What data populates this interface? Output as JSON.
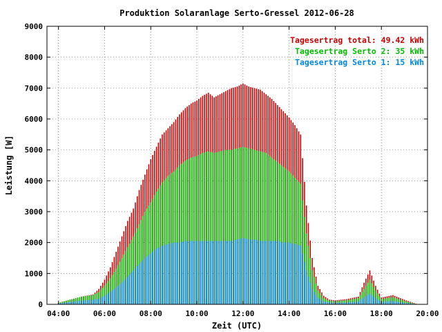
{
  "chart_data": {
    "type": "bar",
    "title": "Produktion Solaranlage Serto-Gressel 2012-06-28",
    "xlabel": "Zeit (UTC)",
    "ylabel": "Leistung [W]",
    "xlim": [
      3.5,
      20.0
    ],
    "ylim": [
      0,
      9000
    ],
    "x_ticks": [
      "04:00",
      "06:00",
      "08:00",
      "10:00",
      "12:00",
      "14:00",
      "16:00",
      "18:00",
      "20:00"
    ],
    "y_ticks": [
      "0",
      "1000",
      "2000",
      "3000",
      "4000",
      "5000",
      "6000",
      "7000",
      "8000",
      "9000"
    ],
    "grid": true,
    "legend_position": "top-right",
    "legend": [
      {
        "label": "Tagesertrag total: 49.42 kWh",
        "color": "#cc0000"
      },
      {
        "label": "Tagesertrag Serto 2: 35 kWh",
        "color": "#00bb00"
      },
      {
        "label": "Tagesertrag Serto 1: 15 kWh",
        "color": "#0088dd"
      }
    ],
    "series": [
      {
        "color": "#cc0000",
        "points": [
          [
            4.0,
            50
          ],
          [
            4.5,
            150
          ],
          [
            5.0,
            250
          ],
          [
            5.5,
            320
          ],
          [
            5.75,
            500
          ],
          [
            6.0,
            800
          ],
          [
            6.25,
            1200
          ],
          [
            6.5,
            1700
          ],
          [
            6.75,
            2200
          ],
          [
            7.0,
            2700
          ],
          [
            7.25,
            3100
          ],
          [
            7.5,
            3700
          ],
          [
            7.75,
            4200
          ],
          [
            8.0,
            4700
          ],
          [
            8.25,
            5100
          ],
          [
            8.5,
            5500
          ],
          [
            8.75,
            5700
          ],
          [
            9.0,
            5900
          ],
          [
            9.25,
            6150
          ],
          [
            9.5,
            6350
          ],
          [
            9.75,
            6500
          ],
          [
            10.0,
            6600
          ],
          [
            10.25,
            6750
          ],
          [
            10.5,
            6850
          ],
          [
            10.75,
            6700
          ],
          [
            11.0,
            6800
          ],
          [
            11.25,
            6900
          ],
          [
            11.5,
            7000
          ],
          [
            11.75,
            7050
          ],
          [
            12.0,
            7150
          ],
          [
            12.25,
            7050
          ],
          [
            12.5,
            7000
          ],
          [
            12.75,
            6950
          ],
          [
            13.0,
            6800
          ],
          [
            13.25,
            6650
          ],
          [
            13.5,
            6450
          ],
          [
            13.75,
            6250
          ],
          [
            14.0,
            6050
          ],
          [
            14.25,
            5800
          ],
          [
            14.5,
            5500
          ],
          [
            14.75,
            3200
          ],
          [
            15.0,
            1500
          ],
          [
            15.25,
            600
          ],
          [
            15.5,
            280
          ],
          [
            15.75,
            150
          ],
          [
            16.0,
            130
          ],
          [
            16.5,
            170
          ],
          [
            17.0,
            250
          ],
          [
            17.25,
            700
          ],
          [
            17.5,
            1100
          ],
          [
            17.75,
            600
          ],
          [
            18.0,
            220
          ],
          [
            18.5,
            300
          ],
          [
            19.0,
            150
          ],
          [
            19.5,
            20
          ]
        ]
      },
      {
        "color": "#00bb00",
        "points": [
          [
            4.0,
            50
          ],
          [
            4.5,
            150
          ],
          [
            5.0,
            250
          ],
          [
            5.5,
            300
          ],
          [
            5.75,
            400
          ],
          [
            6.0,
            600
          ],
          [
            6.25,
            850
          ],
          [
            6.5,
            1150
          ],
          [
            6.75,
            1500
          ],
          [
            7.0,
            1850
          ],
          [
            7.25,
            2200
          ],
          [
            7.5,
            2600
          ],
          [
            7.75,
            3000
          ],
          [
            8.0,
            3300
          ],
          [
            8.25,
            3650
          ],
          [
            8.5,
            3950
          ],
          [
            8.75,
            4150
          ],
          [
            9.0,
            4300
          ],
          [
            9.25,
            4500
          ],
          [
            9.5,
            4650
          ],
          [
            9.75,
            4750
          ],
          [
            10.0,
            4800
          ],
          [
            10.25,
            4900
          ],
          [
            10.5,
            4950
          ],
          [
            10.75,
            4900
          ],
          [
            11.0,
            4950
          ],
          [
            11.25,
            5000
          ],
          [
            11.5,
            5000
          ],
          [
            11.75,
            5050
          ],
          [
            12.0,
            5100
          ],
          [
            12.25,
            5050
          ],
          [
            12.5,
            5000
          ],
          [
            12.75,
            4950
          ],
          [
            13.0,
            4900
          ],
          [
            13.25,
            4750
          ],
          [
            13.5,
            4600
          ],
          [
            13.75,
            4450
          ],
          [
            14.0,
            4300
          ],
          [
            14.25,
            4100
          ],
          [
            14.5,
            3900
          ],
          [
            14.75,
            2300
          ],
          [
            15.0,
            1100
          ],
          [
            15.25,
            450
          ],
          [
            15.5,
            200
          ],
          [
            15.75,
            120
          ],
          [
            16.0,
            100
          ],
          [
            16.5,
            130
          ],
          [
            17.0,
            200
          ],
          [
            17.25,
            500
          ],
          [
            17.5,
            800
          ],
          [
            17.75,
            450
          ],
          [
            18.0,
            170
          ],
          [
            18.5,
            230
          ],
          [
            19.0,
            110
          ],
          [
            19.5,
            10
          ]
        ]
      },
      {
        "color": "#0088dd",
        "points": [
          [
            4.0,
            30
          ],
          [
            4.5,
            80
          ],
          [
            5.0,
            120
          ],
          [
            5.5,
            150
          ],
          [
            5.75,
            180
          ],
          [
            6.0,
            280
          ],
          [
            6.25,
            400
          ],
          [
            6.5,
            550
          ],
          [
            6.75,
            700
          ],
          [
            7.0,
            900
          ],
          [
            7.25,
            1100
          ],
          [
            7.5,
            1300
          ],
          [
            7.75,
            1500
          ],
          [
            8.0,
            1650
          ],
          [
            8.25,
            1800
          ],
          [
            8.5,
            1900
          ],
          [
            8.75,
            1950
          ],
          [
            9.0,
            2000
          ],
          [
            9.25,
            2000
          ],
          [
            9.5,
            2050
          ],
          [
            9.75,
            2050
          ],
          [
            10.0,
            2050
          ],
          [
            10.25,
            2050
          ],
          [
            10.5,
            2050
          ],
          [
            10.75,
            2050
          ],
          [
            11.0,
            2050
          ],
          [
            11.25,
            2050
          ],
          [
            11.5,
            2050
          ],
          [
            11.75,
            2100
          ],
          [
            12.0,
            2150
          ],
          [
            12.25,
            2100
          ],
          [
            12.5,
            2100
          ],
          [
            12.75,
            2050
          ],
          [
            13.0,
            2050
          ],
          [
            13.25,
            2050
          ],
          [
            13.5,
            2050
          ],
          [
            13.75,
            2000
          ],
          [
            14.0,
            2000
          ],
          [
            14.25,
            1950
          ],
          [
            14.5,
            1900
          ],
          [
            14.75,
            1100
          ],
          [
            15.0,
            500
          ],
          [
            15.25,
            200
          ],
          [
            15.5,
            100
          ],
          [
            15.75,
            60
          ],
          [
            16.0,
            50
          ],
          [
            16.5,
            60
          ],
          [
            17.0,
            90
          ],
          [
            17.25,
            220
          ],
          [
            17.5,
            350
          ],
          [
            17.75,
            200
          ],
          [
            18.0,
            80
          ],
          [
            18.5,
            110
          ],
          [
            19.0,
            50
          ],
          [
            19.5,
            5
          ]
        ]
      }
    ]
  }
}
